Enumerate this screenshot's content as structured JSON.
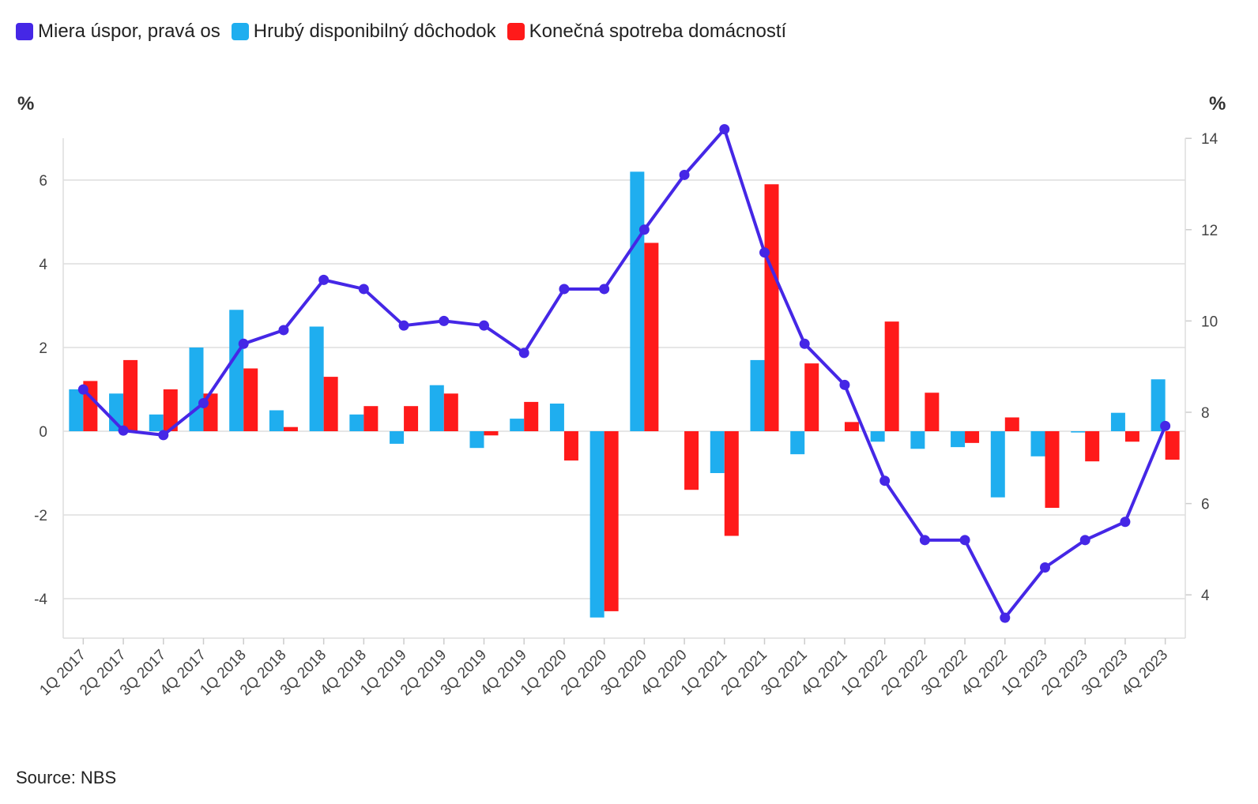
{
  "legend": {
    "items": [
      {
        "label": "Miera úspor, pravá os",
        "color": "#4527e6"
      },
      {
        "label": "Hrubý disponibilný dôchodok",
        "color": "#1faeef"
      },
      {
        "label": "Konečná spotreba domácností",
        "color": "#ff1a1a"
      }
    ]
  },
  "axes": {
    "left_unit": "%",
    "right_unit": "%"
  },
  "source": "Source: NBS",
  "chart_data": {
    "type": "bar",
    "categories": [
      "1Q 2017",
      "2Q 2017",
      "3Q 2017",
      "4Q 2017",
      "1Q 2018",
      "2Q 2018",
      "3Q 2018",
      "4Q 2018",
      "1Q 2019",
      "2Q 2019",
      "3Q 2019",
      "4Q 2019",
      "1Q 2020",
      "2Q 2020",
      "3Q 2020",
      "4Q 2020",
      "1Q 2021",
      "2Q 2021",
      "3Q 2021",
      "4Q 2021",
      "1Q 2022",
      "2Q 2022",
      "3Q 2022",
      "4Q 2022",
      "1Q 2023",
      "2Q 2023",
      "3Q 2023",
      "4Q 2023"
    ],
    "series": [
      {
        "name": "Hrubý disponibilný dôchodok",
        "kind": "bar",
        "axis": "left",
        "color": "#1faeef",
        "values": [
          1.0,
          0.9,
          0.4,
          2.0,
          2.9,
          0.5,
          2.5,
          0.4,
          -0.3,
          1.1,
          -0.4,
          0.3,
          0.66,
          -4.45,
          6.2,
          0.0,
          -1.0,
          1.7,
          -0.55,
          0.0,
          -0.25,
          -0.42,
          -0.38,
          -1.58,
          -0.6,
          -0.03,
          0.44,
          1.24
        ]
      },
      {
        "name": "Konečná spotreba domácností",
        "kind": "bar",
        "axis": "left",
        "color": "#ff1a1a",
        "values": [
          1.2,
          1.7,
          1.0,
          0.9,
          1.5,
          0.1,
          1.3,
          0.6,
          0.6,
          0.9,
          -0.1,
          0.7,
          -0.7,
          -4.3,
          4.5,
          -1.4,
          -2.5,
          5.9,
          1.62,
          0.22,
          2.62,
          0.92,
          -0.28,
          0.33,
          -1.83,
          -0.72,
          -0.25,
          -0.68
        ]
      },
      {
        "name": "Miera úspor, pravá os",
        "kind": "line",
        "axis": "right",
        "color": "#4527e6",
        "values": [
          8.5,
          7.6,
          7.5,
          8.2,
          9.5,
          9.8,
          10.9,
          10.7,
          9.9,
          10.0,
          9.9,
          9.3,
          10.7,
          10.7,
          12.0,
          13.2,
          14.2,
          11.5,
          9.5,
          8.6,
          6.5,
          5.2,
          5.2,
          3.5,
          4.6,
          5.2,
          5.6,
          7.7
        ]
      }
    ],
    "left_axis": {
      "ylim": [
        -5,
        7.2
      ],
      "ticks": [
        -4,
        -2,
        0,
        2,
        4,
        6
      ],
      "tick_labels": [
        "-4",
        "-2",
        "0",
        "2",
        "4",
        "6"
      ]
    },
    "right_axis": {
      "ylim": [
        3.1,
        14.3
      ],
      "ticks": [
        4,
        6,
        8,
        10,
        12,
        14
      ],
      "tick_labels": [
        "4",
        "6",
        "8",
        "10",
        "12",
        "14"
      ]
    },
    "grid": true,
    "legend_position": "top-left"
  }
}
